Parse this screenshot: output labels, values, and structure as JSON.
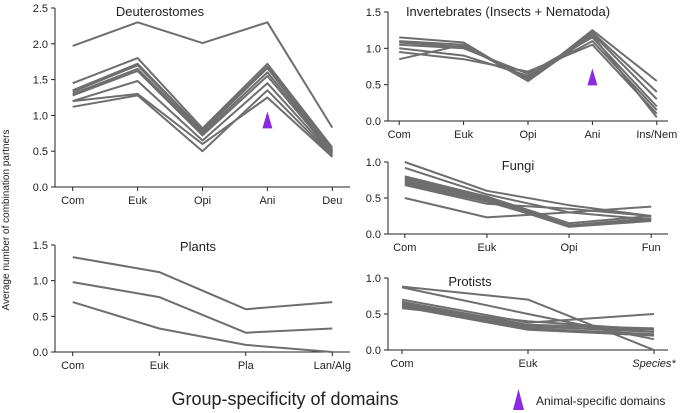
{
  "figure": {
    "ylabel": "Average number of combination partners",
    "xlabel": "Group-specificity of domains",
    "legend_label": "Animal-specific domains",
    "colors": {
      "line": "#6e6e6e",
      "marker": "#8a2be2",
      "axis": "#222222"
    }
  },
  "chart_data": [
    {
      "type": "line",
      "title": "Deuterostomes",
      "categories": [
        "Com",
        "Euk",
        "Opi",
        "Ani",
        "Deu"
      ],
      "ylim": [
        0,
        2.5
      ],
      "yticks": [
        "0.0",
        "0.5",
        "1.0",
        "1.5",
        "2.0",
        "2.5"
      ],
      "marker": {
        "category": "Ani",
        "value": 0.93
      },
      "series": [
        {
          "values": [
            1.97,
            2.3,
            2.01,
            2.3,
            0.83
          ]
        },
        {
          "values": [
            1.45,
            1.8,
            0.82,
            1.72,
            0.55
          ]
        },
        {
          "values": [
            1.35,
            1.72,
            0.79,
            1.68,
            0.52
          ]
        },
        {
          "values": [
            1.33,
            1.7,
            0.78,
            1.66,
            0.5
          ]
        },
        {
          "values": [
            1.3,
            1.65,
            0.75,
            1.6,
            0.49
          ]
        },
        {
          "values": [
            1.28,
            1.62,
            0.72,
            1.55,
            0.47
          ]
        },
        {
          "values": [
            1.2,
            1.48,
            0.65,
            1.45,
            0.45
          ]
        },
        {
          "values": [
            1.12,
            1.28,
            0.5,
            1.35,
            0.43
          ]
        },
        {
          "values": [
            1.2,
            1.3,
            0.6,
            1.25,
            0.42
          ]
        }
      ]
    },
    {
      "type": "line",
      "title": "Invertebrates (Insects + Nematoda)",
      "categories": [
        "Com",
        "Euk",
        "Opi",
        "Ani",
        "Ins/Nem"
      ],
      "ylim": [
        0,
        1.5
      ],
      "yticks": [
        "0.0",
        "0.5",
        "1.0",
        "1.5"
      ],
      "marker": {
        "category": "Ani",
        "value": 0.6
      },
      "series": [
        {
          "values": [
            1.15,
            1.08,
            0.55,
            1.25,
            0.55
          ]
        },
        {
          "values": [
            1.1,
            1.05,
            0.58,
            1.22,
            0.4
          ]
        },
        {
          "values": [
            1.08,
            1.02,
            0.6,
            1.2,
            0.3
          ]
        },
        {
          "values": [
            1.05,
            1.0,
            0.65,
            1.15,
            0.2
          ]
        },
        {
          "values": [
            1.0,
            0.9,
            0.62,
            1.1,
            0.15
          ]
        },
        {
          "values": [
            0.95,
            0.85,
            0.68,
            1.05,
            0.1
          ]
        },
        {
          "values": [
            0.85,
            1.05,
            0.55,
            1.18,
            0.05
          ]
        }
      ]
    },
    {
      "type": "line",
      "title": "Fungi",
      "categories": [
        "Com",
        "Euk",
        "Opi",
        "Fun"
      ],
      "ylim": [
        0,
        1.0
      ],
      "yticks": [
        "0.0",
        "0.5",
        "1.0"
      ],
      "series": [
        {
          "values": [
            1.0,
            0.6,
            0.4,
            0.25
          ]
        },
        {
          "values": [
            0.92,
            0.55,
            0.3,
            0.2
          ]
        },
        {
          "values": [
            0.8,
            0.52,
            0.15,
            0.25
          ]
        },
        {
          "values": [
            0.78,
            0.5,
            0.12,
            0.22
          ]
        },
        {
          "values": [
            0.76,
            0.5,
            0.12,
            0.2
          ]
        },
        {
          "values": [
            0.74,
            0.48,
            0.1,
            0.2
          ]
        },
        {
          "values": [
            0.72,
            0.47,
            0.1,
            0.18
          ]
        },
        {
          "values": [
            0.7,
            0.45,
            0.12,
            0.2
          ]
        },
        {
          "values": [
            0.68,
            0.42,
            0.35,
            0.25
          ]
        },
        {
          "values": [
            0.5,
            0.23,
            0.3,
            0.38
          ]
        }
      ]
    },
    {
      "type": "line",
      "title": "Plants",
      "categories": [
        "Com",
        "Euk",
        "Pla",
        "Lan/Alg"
      ],
      "ylim": [
        0,
        1.5
      ],
      "yticks": [
        "0.0",
        "0.5",
        "1.0",
        "1.5"
      ],
      "series": [
        {
          "values": [
            1.33,
            1.12,
            0.6,
            0.7
          ]
        },
        {
          "values": [
            0.98,
            0.77,
            0.27,
            0.33
          ]
        },
        {
          "values": [
            0.7,
            0.33,
            0.1,
            0.0
          ]
        }
      ]
    },
    {
      "type": "line",
      "title": "Protists",
      "categories": [
        "Com",
        "Euk",
        "Species*"
      ],
      "ylim": [
        0,
        1.0
      ],
      "yticks": [
        "0.0",
        "0.5",
        "1.0"
      ],
      "series": [
        {
          "values": [
            0.88,
            0.7,
            0.0
          ]
        },
        {
          "values": [
            0.87,
            0.5,
            0.15
          ]
        },
        {
          "values": [
            0.7,
            0.38,
            0.5
          ]
        },
        {
          "values": [
            0.67,
            0.35,
            0.3
          ]
        },
        {
          "values": [
            0.65,
            0.33,
            0.25
          ]
        },
        {
          "values": [
            0.63,
            0.32,
            0.28
          ]
        },
        {
          "values": [
            0.62,
            0.3,
            0.22
          ]
        },
        {
          "values": [
            0.6,
            0.28,
            0.2
          ]
        },
        {
          "values": [
            0.58,
            0.4,
            0.28
          ]
        }
      ]
    }
  ]
}
